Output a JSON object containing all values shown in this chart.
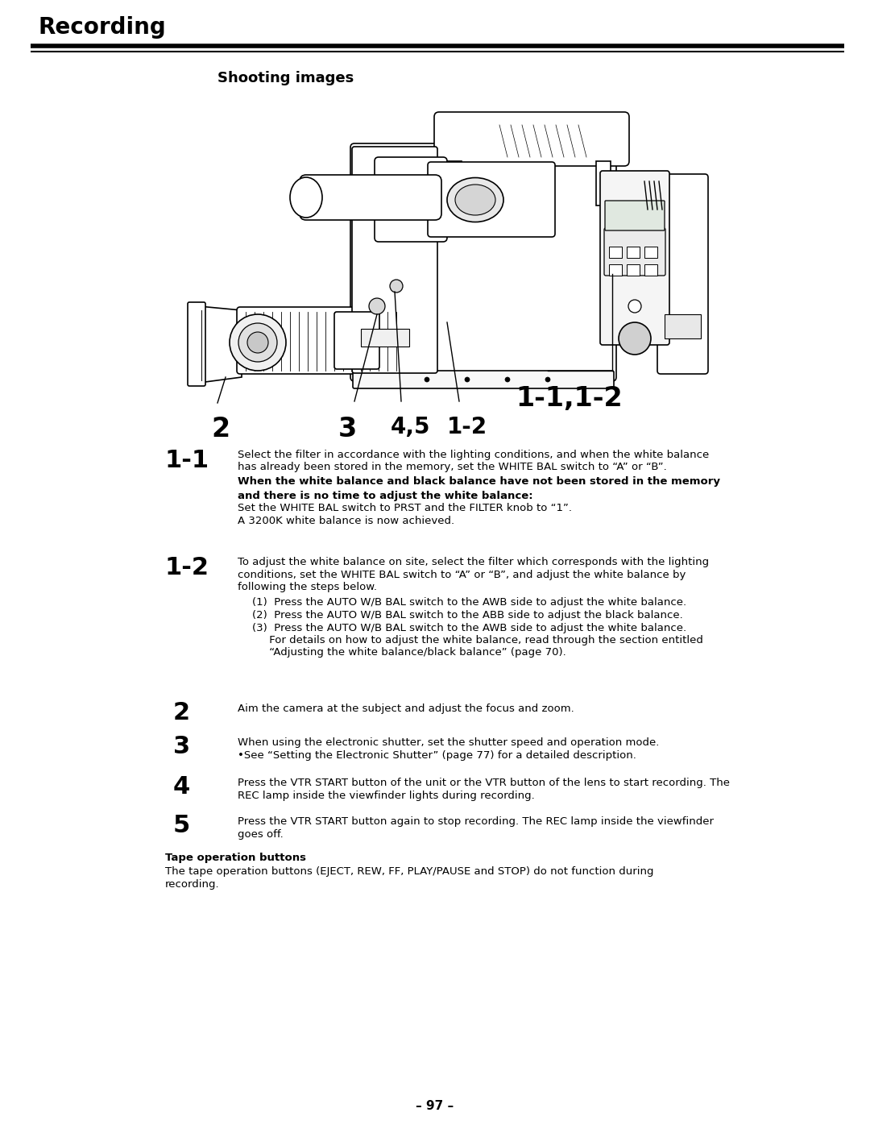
{
  "title": "Recording",
  "subtitle": "Shooting images",
  "page_number": "– 97 –",
  "bg_color": "#ffffff",
  "text_color": "#000000",
  "title_fontsize": 20,
  "subtitle_fontsize": 13,
  "body_fontsize": 9.5,
  "section_1_1_label": "1-1",
  "section_1_1_text_line1": "Select the filter in accordance with the lighting conditions, and when the white balance",
  "section_1_1_text_line2": "has already been stored in the memory, set the WHITE BAL switch to “A” or “B”.",
  "section_1_1_bold": "When the white balance and black balance have not been stored in the memory\nand there is no time to adjust the white balance:",
  "section_1_1_text_line3": "Set the WHITE BAL switch to PRST and the FILTER knob to “1”.",
  "section_1_1_text_line4": "A 3200K white balance is now achieved.",
  "section_1_2_label": "1-2",
  "section_1_2_text_line1": "To adjust the white balance on site, select the filter which corresponds with the lighting",
  "section_1_2_text_line2": "conditions, set the WHITE BAL switch to “A” or “B”, and adjust the white balance by",
  "section_1_2_text_line3": "following the steps below.",
  "section_1_2_item1": "(1)  Press the AUTO W/B BAL switch to the AWB side to adjust the white balance.",
  "section_1_2_item2": "(2)  Press the AUTO W/B BAL switch to the ABB side to adjust the black balance.",
  "section_1_2_item3": "(3)  Press the AUTO W/B BAL switch to the AWB side to adjust the white balance.",
  "section_1_2_item3b": "     For details on how to adjust the white balance, read through the section entitled",
  "section_1_2_item3c": "     “Adjusting the white balance/black balance” (page 70).",
  "step2_label": "2",
  "step2_text": "Aim the camera at the subject and adjust the focus and zoom.",
  "step3_label": "3",
  "step3_text_line1": "When using the electronic shutter, set the shutter speed and operation mode.",
  "step3_text_line2": "•See “Setting the Electronic Shutter” (page 77) for a detailed description.",
  "step4_label": "4",
  "step4_text_line1": "Press the VTR START button of the unit or the VTR button of the lens to start recording. The",
  "step4_text_line2": "REC lamp inside the viewfinder lights during recording.",
  "step5_label": "5",
  "step5_text_line1": "Press the VTR START button again to stop recording. The REC lamp inside the viewfinder",
  "step5_text_line2": "goes off.",
  "tape_title": "Tape operation buttons",
  "tape_text_line1": "The tape operation buttons (EJECT, REW, FF, PLAY/PAUSE and STOP) do not function during",
  "tape_text_line2": "recording.",
  "callout_2": "2",
  "callout_3": "3",
  "callout_45": "4,5",
  "callout_12": "1-2",
  "callout_1112": "1-1,1-2"
}
